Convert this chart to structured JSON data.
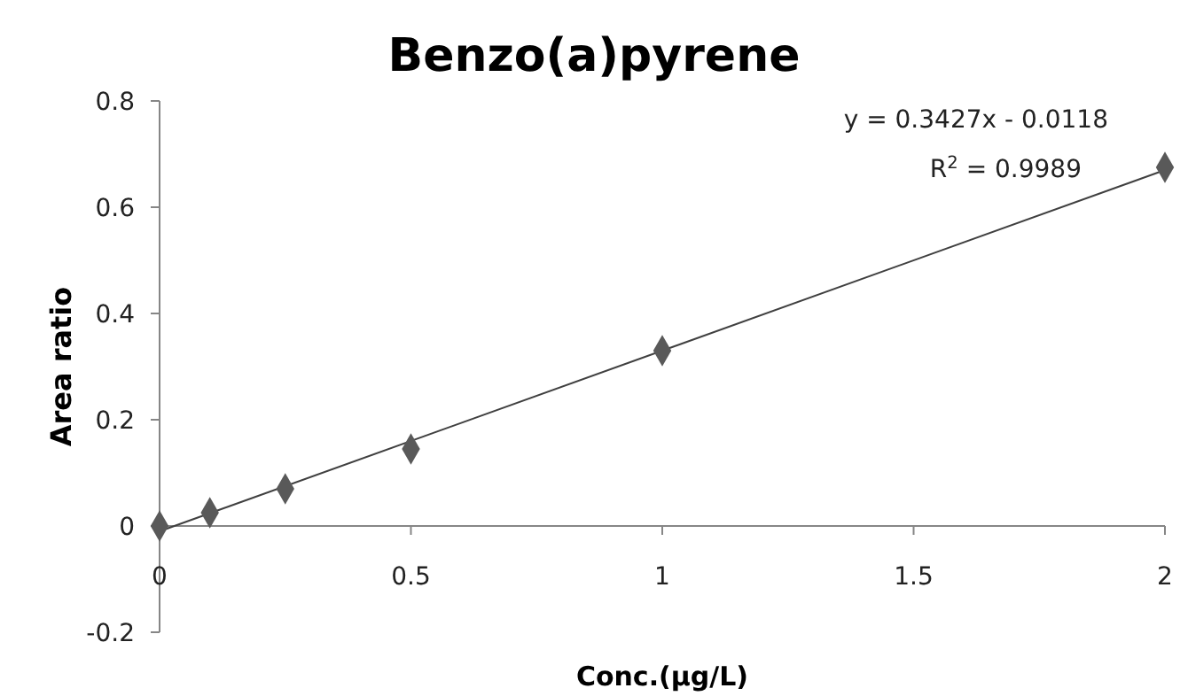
{
  "chart_data": {
    "type": "scatter",
    "title": "Benzo(a)pyrene",
    "xlabel": "Conc.(μg/L)",
    "ylabel": "Area ratio",
    "series": [
      {
        "marker": "diamond",
        "color": "#595959",
        "x": [
          0,
          0.1,
          0.25,
          0.5,
          1,
          2
        ],
        "values": [
          0,
          0.025,
          0.07,
          0.145,
          0.33,
          0.675
        ]
      },
      {
        "type": "line",
        "marker": "none",
        "color": "#404040",
        "x": [
          0,
          2
        ],
        "values": [
          -0.01,
          0.67
        ]
      }
    ],
    "grid": false,
    "xlim": [
      0,
      2
    ],
    "xticks": [
      0,
      0.5,
      1,
      1.5,
      2
    ],
    "ylim": [
      -0.2,
      0.8
    ],
    "yticks": [
      {
        "value": -0.2,
        "label": "-0.2"
      },
      0,
      0.2,
      0.4,
      0.6,
      0.8
    ],
    "annotations": [
      "y = 0.3427x - 0.0118",
      "R$^{2}$ = 0.9989"
    ]
  }
}
